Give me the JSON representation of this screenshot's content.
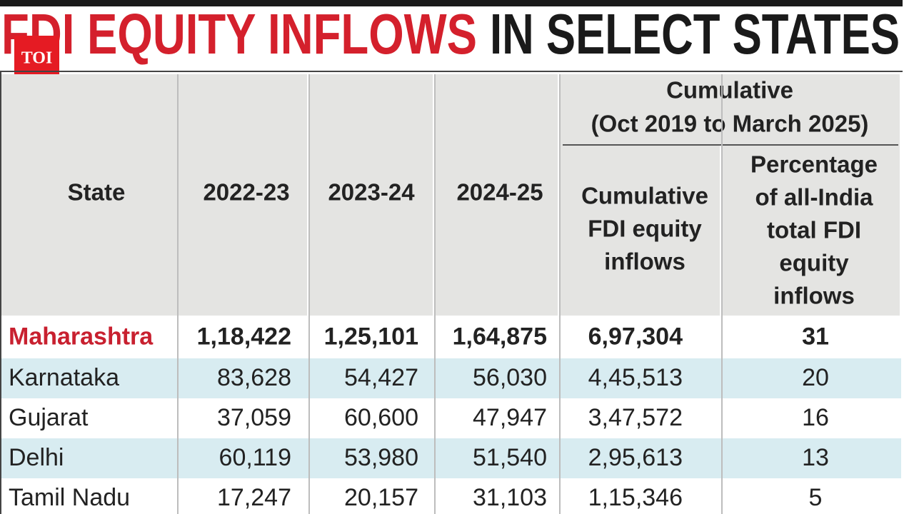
{
  "logo": "TOI",
  "title": {
    "highlight": "FDI EQUITY INFLOWS",
    "rest": "IN SELECT STATES"
  },
  "table": {
    "header": {
      "state": "State",
      "years": [
        "2022-23",
        "2023-24",
        "2024-25"
      ],
      "group": [
        "Cumulative",
        "(Oct 2019 to March 2025)"
      ],
      "cumulative": [
        "Cumulative",
        "FDI equity",
        "inflows"
      ],
      "percentage": [
        "Percentage",
        "of all-India",
        "total FDI",
        "equity",
        "inflows"
      ]
    },
    "rows": [
      [
        "Maharashtra",
        "1,18,422",
        "1,25,101",
        "1,64,875",
        "6,97,304",
        "31"
      ],
      [
        "Karnataka",
        "83,628",
        "54,427",
        "56,030",
        "4,45,513",
        "20"
      ],
      [
        "Gujarat",
        "37,059",
        "60,600",
        "47,947",
        "3,47,572",
        "16"
      ],
      [
        "Delhi",
        "60,119",
        "53,980",
        "51,540",
        "2,95,613",
        "13"
      ],
      [
        "Tamil Nadu",
        "17,247",
        "20,157",
        "31,103",
        "1,15,346",
        "5"
      ]
    ]
  }
}
